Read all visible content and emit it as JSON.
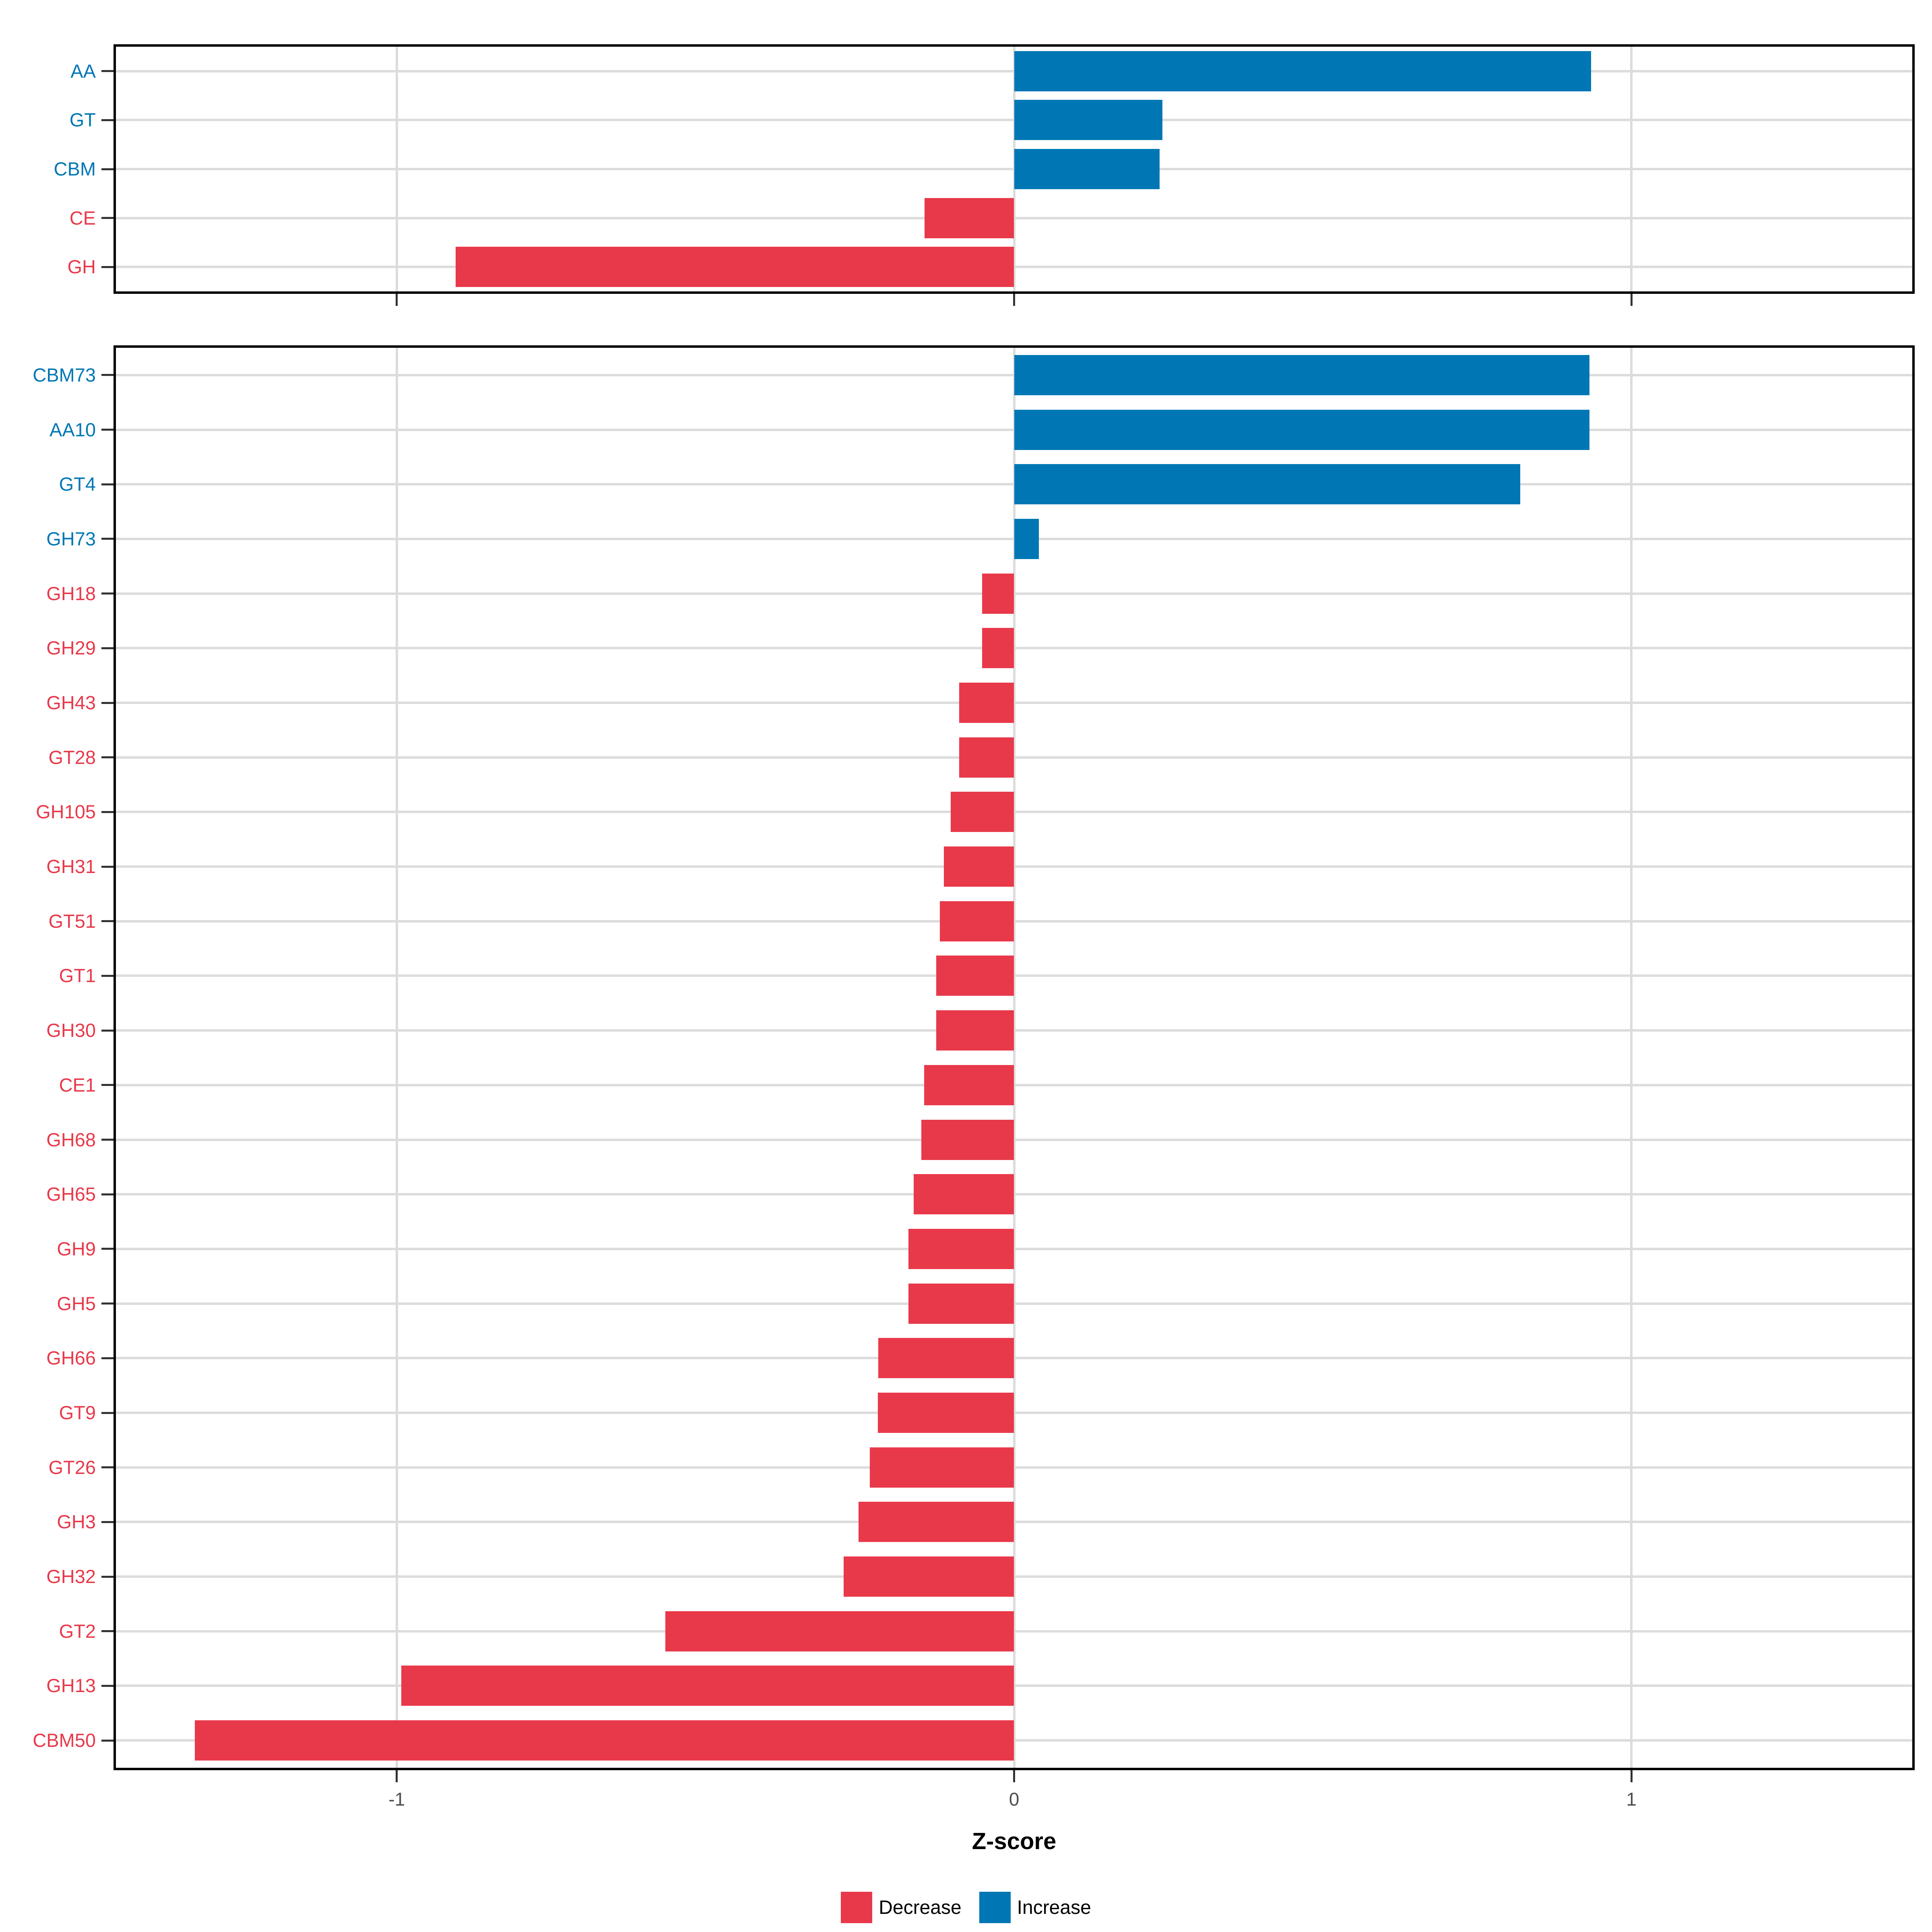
{
  "chart_data": {
    "type": "bar",
    "orientation": "horizontal",
    "title": "",
    "xlabel": "Z-score",
    "ylabel": "",
    "x_ticks": [
      -1,
      0,
      1
    ],
    "x_tick_labels": [
      "-1",
      "0",
      "1"
    ],
    "xlim": [
      -1.455,
      1.455
    ],
    "grid": true,
    "legend_position": "bottom",
    "legend": [
      {
        "label": "Decrease",
        "color": "#E8394A"
      },
      {
        "label": "Increase",
        "color": "#0077B4"
      }
    ],
    "panels": [
      {
        "name": "enzyme-classes",
        "categories": [
          "AA",
          "GT",
          "CBM",
          "CE",
          "GH"
        ],
        "values": [
          0.935,
          0.24,
          0.236,
          -0.145,
          -0.905
        ]
      },
      {
        "name": "enzyme-families",
        "categories": [
          "CBM73",
          "AA10",
          "GT4",
          "GH73",
          "GH18",
          "GH29",
          "GH43",
          "GT28",
          "GH105",
          "GH31",
          "GT51",
          "GT1",
          "GH30",
          "CE1",
          "GH68",
          "GH65",
          "GH9",
          "GH5",
          "GH66",
          "GT9",
          "GT26",
          "GH3",
          "GH32",
          "GT2",
          "GH13",
          "CBM50"
        ],
        "values": [
          0.932,
          0.932,
          0.82,
          0.04,
          -0.052,
          -0.052,
          -0.089,
          -0.089,
          -0.103,
          -0.114,
          -0.12,
          -0.126,
          -0.126,
          -0.146,
          -0.15,
          -0.163,
          -0.171,
          -0.171,
          -0.22,
          -0.221,
          -0.234,
          -0.252,
          -0.276,
          -0.565,
          -0.993,
          -1.327
        ]
      }
    ]
  },
  "axis": {
    "title": "Z-score",
    "tick_labels": [
      "-1",
      "0",
      "1"
    ]
  },
  "colors": {
    "decrease": "#E8394A",
    "increase": "#0077B4",
    "grid": "#DCDCDC",
    "axis_text": "#4D4D4D",
    "tick_mark": "#333333",
    "panel_border": "#000000",
    "background": "#FFFFFF"
  }
}
